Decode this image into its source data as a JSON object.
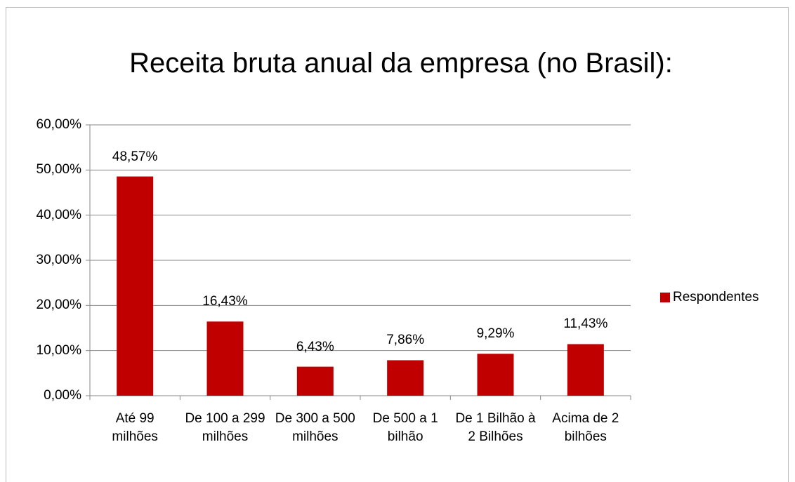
{
  "chart_data": {
    "type": "bar",
    "title": "Receita bruta anual da empresa (no Brasil):",
    "categories": [
      "Até 99 milhões",
      "De 100 a 299 milhões",
      "De 300 a 500 milhões",
      "De 500 a 1 bilhão",
      "De 1 Bilhão à 2 Bilhões",
      "Acima de 2 bilhões"
    ],
    "series": [
      {
        "name": "Respondentes",
        "color": "#c00000",
        "values": [
          48.57,
          16.43,
          6.43,
          7.86,
          9.29,
          11.43
        ],
        "value_labels": [
          "48,57%",
          "16,43%",
          "6,43%",
          "7,86%",
          "9,29%",
          "11,43%"
        ]
      }
    ],
    "ylim": [
      0,
      60
    ],
    "yticks": [
      {
        "value": 0,
        "label": "0,00%"
      },
      {
        "value": 10,
        "label": "10,00%"
      },
      {
        "value": 20,
        "label": "20,00%"
      },
      {
        "value": 30,
        "label": "30,00%"
      },
      {
        "value": 40,
        "label": "40,00%"
      },
      {
        "value": 50,
        "label": "50,00%"
      },
      {
        "value": 60,
        "label": "60,00%"
      }
    ],
    "grid": true,
    "legend": "right"
  }
}
